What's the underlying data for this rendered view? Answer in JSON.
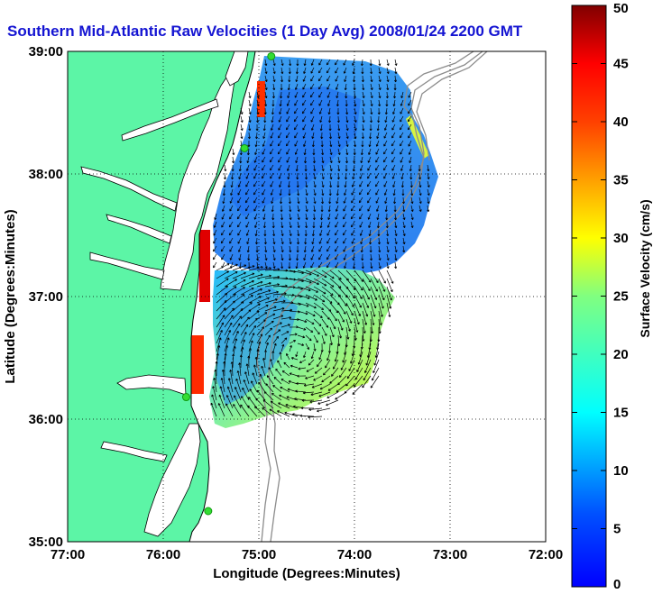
{
  "title": "Southern Mid-Atlantic Raw Velocities (1 Day Avg) 2008/01/24 2200 GMT",
  "colors": {
    "title": "#1414d2",
    "land": "#5cf5a6",
    "station": "#33dd33",
    "isobath": "#8c8c8c",
    "vector": "#000000"
  },
  "map": {
    "lon_range": [
      -77,
      -72
    ],
    "lat_range": [
      35,
      39
    ],
    "grid": "dotted",
    "x_ticks": [
      "77:00",
      "76:00",
      "75:00",
      "74:00",
      "73:00",
      "72:00"
    ],
    "y_ticks": [
      "39:00",
      "38:00",
      "37:00",
      "36:00",
      "35:00"
    ],
    "xlabel": "Longitude (Degrees:Minutes)",
    "ylabel": "Latitude (Degrees:Minutes)",
    "stations": [
      {
        "lon": -74.87,
        "lat": 38.96
      },
      {
        "lon": -75.15,
        "lat": 38.21
      },
      {
        "lon": -75.76,
        "lat": 36.18
      },
      {
        "lon": -75.53,
        "lat": 35.25
      }
    ]
  },
  "colorbar": {
    "label": "Surface Velocity (cm/s)",
    "range": [
      0,
      50
    ],
    "ticks": [
      "50",
      "45",
      "40",
      "35",
      "30",
      "25",
      "20",
      "15",
      "10",
      "5",
      "0"
    ],
    "colormap": "jet"
  }
}
